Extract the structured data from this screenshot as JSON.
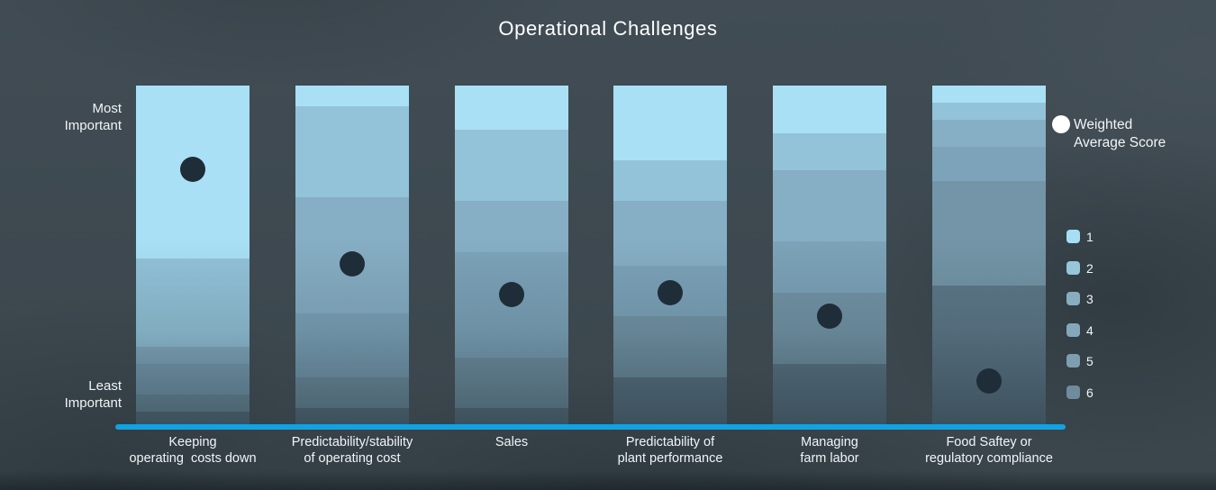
{
  "title": "Operational Challenges",
  "y_axis": {
    "top_label_lines": [
      "Most",
      "Important"
    ],
    "bottom_label_lines": [
      "Least",
      "Important"
    ]
  },
  "legend": {
    "weighted_label_lines": [
      "Weighted",
      "Average Score"
    ],
    "scale_items": [
      {
        "value": "1",
        "color": "#a6dff4"
      },
      {
        "value": "2",
        "color": "#97c6db"
      },
      {
        "value": "3",
        "color": "#8aacc0"
      },
      {
        "value": "4",
        "color": "#84a7bb"
      },
      {
        "value": "5",
        "color": "#7e9db0"
      },
      {
        "value": "6",
        "color": "#6e8c9c"
      }
    ]
  },
  "colors": {
    "background": "#3e4950",
    "axis_line": "#12a2e2",
    "weighted_dot": "#1f2d39",
    "legend_dot": "#ffffff",
    "text": "#f2f5f7"
  },
  "chart_data": {
    "type": "bar",
    "subtype": "100%-stacked vertical bars, ranking distribution 1 (top, most important) to 6 (bottom, least important), with weighted-average-score dot overlay",
    "title": "Operational Challenges",
    "ylabel_top": "Most Important",
    "ylabel_bottom": "Least Important",
    "series_labels": [
      "1",
      "2",
      "3",
      "4",
      "5",
      "6"
    ],
    "segment_colors": [
      "#a9e0f5",
      "#93c3d9",
      "#86aec4",
      "#7ca3b9",
      "#7395a7",
      "#5d7888"
    ],
    "legend_position": "right",
    "grid": false,
    "categories": [
      {
        "label_lines": [
          "Keeping",
          "operating  costs down"
        ],
        "label": "Keeping operating costs down",
        "segments_pct": [
          51,
          26,
          5,
          9,
          5,
          4
        ],
        "dot_fraction_from_top": 0.247
      },
      {
        "label_lines": [
          "Predictability/stability",
          "of operating cost"
        ],
        "label": "Predictability/stability of operating cost",
        "segments_pct": [
          6,
          27,
          34,
          19,
          9,
          5
        ],
        "dot_fraction_from_top": 0.525
      },
      {
        "label_lines": [
          "Sales"
        ],
        "label": "Sales",
        "segments_pct": [
          13,
          21,
          15,
          31,
          15,
          5
        ],
        "dot_fraction_from_top": 0.615
      },
      {
        "label_lines": [
          "Predictability of",
          "plant performance"
        ],
        "label": "Predictability of plant performance",
        "segments_pct": [
          22,
          12,
          19,
          15,
          18,
          14
        ],
        "dot_fraction_from_top": 0.61
      },
      {
        "label_lines": [
          "Managing",
          "farm labor"
        ],
        "label": "Managing farm labor",
        "segments_pct": [
          14,
          11,
          21,
          15,
          21,
          18
        ],
        "dot_fraction_from_top": 0.679
      },
      {
        "label_lines": [
          "Food Saftey or",
          "regulatory compliance"
        ],
        "label": "Food Saftey or regulatory compliance",
        "segments_pct": [
          5,
          5,
          8,
          10,
          31,
          41
        ],
        "dot_fraction_from_top": 0.87
      }
    ]
  }
}
